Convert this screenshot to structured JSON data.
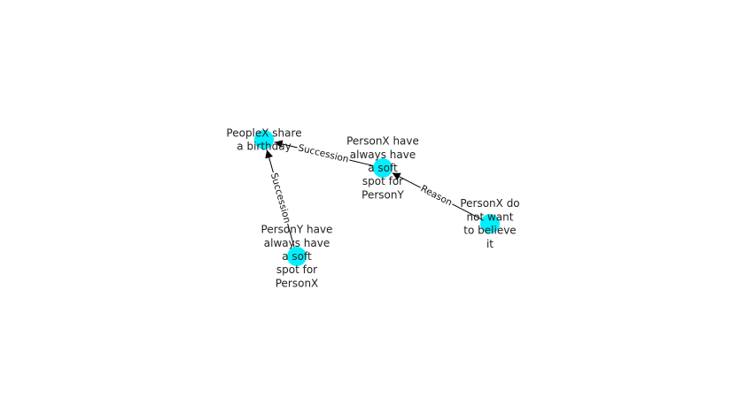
{
  "graph": {
    "node_color": "#00f0ff",
    "edge_color": "#000000",
    "nodes": [
      {
        "id": "n1",
        "lines": [
          "PeopleX share",
          "a birthday"
        ]
      },
      {
        "id": "n2",
        "lines": [
          "PersonX have",
          "always have",
          "a soft",
          "spot for",
          "PersonY"
        ]
      },
      {
        "id": "n3",
        "lines": [
          "PersonY have",
          "always have",
          "a soft",
          "spot for",
          "PersonX"
        ]
      },
      {
        "id": "n4",
        "lines": [
          "PersonX do",
          "not want",
          "to believe",
          "it"
        ]
      }
    ],
    "edges": [
      {
        "from": "n2",
        "to": "n1",
        "label": "Succession"
      },
      {
        "from": "n3",
        "to": "n1",
        "label": "Succession"
      },
      {
        "from": "n4",
        "to": "n2",
        "label": "Reason"
      }
    ]
  }
}
